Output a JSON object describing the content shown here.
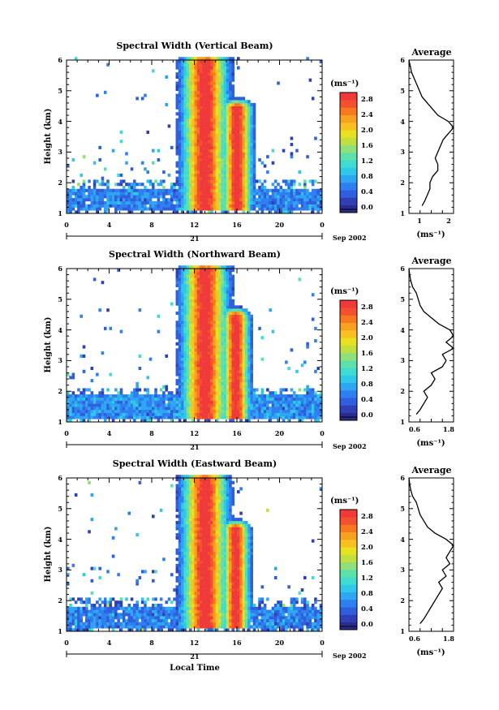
{
  "colormap": [
    "#2b2b8c",
    "#2f3fb5",
    "#2f5fdc",
    "#2f7ff0",
    "#2fa6f2",
    "#2fc8e8",
    "#3fdccf",
    "#5fe0a8",
    "#8fe07a",
    "#c0e040",
    "#e8e020",
    "#f8c020",
    "#f8a020",
    "#f87820",
    "#f45030",
    "#f03a3a"
  ],
  "panels": [
    {
      "title": "Spectral Width (Vertical Beam)",
      "ylabel": "Height (km)",
      "xticks": [
        "0",
        "4",
        "8",
        "12",
        "16",
        "20",
        "0"
      ],
      "date_day": "21",
      "date_month": "Sep 2002",
      "yticks": [
        "1",
        "2",
        "3",
        "4",
        "5",
        "6"
      ],
      "colorbar_unit": "(ms⁻¹)",
      "colorbar_ticks": [
        "0.0",
        "0.4",
        "0.8",
        "1.2",
        "1.6",
        "2.0",
        "2.4",
        "2.8"
      ],
      "avg_title": "Average",
      "avg_xticks": [
        "1",
        "2"
      ],
      "avg_xlabel": "(ms⁻¹)"
    },
    {
      "title": "Spectral Width (Northward Beam)",
      "ylabel": "Height (km)",
      "xticks": [
        "0",
        "4",
        "8",
        "12",
        "16",
        "20",
        "0"
      ],
      "date_day": "21",
      "date_month": "Sep 2002",
      "yticks": [
        "1",
        "2",
        "3",
        "4",
        "5",
        "6"
      ],
      "colorbar_unit": "(ms⁻¹)",
      "colorbar_ticks": [
        "0.0",
        "0.4",
        "0.8",
        "1.2",
        "1.6",
        "2.0",
        "2.4",
        "2.8"
      ],
      "avg_title": "Average",
      "avg_xticks": [
        "0.6",
        "1.8"
      ],
      "avg_xlabel": "(ms⁻¹)"
    },
    {
      "title": "Spectral Width (Eastward Beam)",
      "ylabel": "Height (km)",
      "xticks": [
        "0",
        "4",
        "8",
        "12",
        "16",
        "20",
        "0"
      ],
      "date_day": "21",
      "date_month": "Sep 2002",
      "yticks": [
        "1",
        "2",
        "3",
        "4",
        "5",
        "6"
      ],
      "colorbar_unit": "(ms⁻¹)",
      "colorbar_ticks": [
        "0.0",
        "0.4",
        "0.8",
        "1.2",
        "1.6",
        "2.0",
        "2.4",
        "2.8"
      ],
      "avg_title": "Average",
      "avg_xticks": [
        "0.6",
        "1.8"
      ],
      "avg_xlabel": "(ms⁻¹)",
      "xlabel": "Local Time"
    }
  ],
  "chart_data": [
    {
      "type": "heatmap",
      "title": "Spectral Width (Vertical Beam)",
      "xlabel": "",
      "ylabel": "Height (km)",
      "xlim": [
        0,
        24
      ],
      "ylim": [
        1,
        6
      ],
      "colorbar_range": [
        0.0,
        3.0
      ],
      "features": [
        {
          "region": "convective band",
          "time": [
            11.5,
            14.5
          ],
          "height": [
            1.1,
            6.0
          ],
          "value": 3.0
        },
        {
          "region": "convective band",
          "time": [
            15.0,
            17.0
          ],
          "height": [
            1.1,
            4.5
          ],
          "value": 3.0
        },
        {
          "region": "boundary layer",
          "time": [
            0,
            24
          ],
          "height": [
            1.1,
            1.8
          ],
          "value": 0.4
        }
      ]
    },
    {
      "type": "line",
      "title": "Average",
      "xlabel": "(ms⁻¹)",
      "ylabel": "",
      "xlim": [
        0.5,
        2.2
      ],
      "ylim": [
        1,
        6
      ],
      "series": [
        {
          "points": [
            [
              1.0,
              1.25
            ],
            [
              1.1,
              1.4
            ],
            [
              1.2,
              1.6
            ],
            [
              1.3,
              1.8
            ],
            [
              1.3,
              2.0
            ],
            [
              1.4,
              2.2
            ],
            [
              1.6,
              2.4
            ],
            [
              1.6,
              2.6
            ],
            [
              1.5,
              2.8
            ],
            [
              1.6,
              3.0
            ],
            [
              1.7,
              3.2
            ],
            [
              1.8,
              3.4
            ],
            [
              2.0,
              3.6
            ],
            [
              2.2,
              3.8
            ],
            [
              2.0,
              4.0
            ],
            [
              1.6,
              4.2
            ],
            [
              1.4,
              4.4
            ],
            [
              1.2,
              4.6
            ],
            [
              1.0,
              4.8
            ],
            [
              0.9,
              5.0
            ],
            [
              0.8,
              5.2
            ],
            [
              0.7,
              5.4
            ],
            [
              0.6,
              5.6
            ],
            [
              0.55,
              5.8
            ],
            [
              0.5,
              6.0
            ]
          ]
        }
      ]
    },
    {
      "type": "heatmap",
      "title": "Spectral Width (Northward Beam)",
      "xlabel": "",
      "ylabel": "Height (km)",
      "xlim": [
        0,
        24
      ],
      "ylim": [
        1,
        6
      ],
      "colorbar_range": [
        0.0,
        3.0
      ],
      "features": [
        {
          "region": "convective band",
          "time": [
            11.5,
            14.5
          ],
          "height": [
            1.1,
            6.0
          ],
          "value": 3.0
        },
        {
          "region": "convective band",
          "time": [
            15.0,
            16.8
          ],
          "height": [
            1.1,
            4.5
          ],
          "value": 3.0
        },
        {
          "region": "boundary layer",
          "time": [
            0,
            24
          ],
          "height": [
            1.1,
            1.9
          ],
          "value": 0.5
        }
      ]
    },
    {
      "type": "line",
      "title": "Average",
      "xlabel": "(ms⁻¹)",
      "ylabel": "",
      "xlim": [
        0.6,
        1.8
      ],
      "ylim": [
        1,
        6
      ],
      "series": [
        {
          "points": [
            [
              0.8,
              1.25
            ],
            [
              0.9,
              1.4
            ],
            [
              1.0,
              1.6
            ],
            [
              1.1,
              1.8
            ],
            [
              1.0,
              2.0
            ],
            [
              1.2,
              2.2
            ],
            [
              1.3,
              2.4
            ],
            [
              1.2,
              2.6
            ],
            [
              1.5,
              2.8
            ],
            [
              1.6,
              3.0
            ],
            [
              1.5,
              3.2
            ],
            [
              1.8,
              3.4
            ],
            [
              1.6,
              3.6
            ],
            [
              1.8,
              3.8
            ],
            [
              1.7,
              4.0
            ],
            [
              1.4,
              4.2
            ],
            [
              1.2,
              4.4
            ],
            [
              1.0,
              4.6
            ],
            [
              0.9,
              4.8
            ],
            [
              0.85,
              5.0
            ],
            [
              0.8,
              5.2
            ],
            [
              0.7,
              5.4
            ],
            [
              0.65,
              5.6
            ],
            [
              0.62,
              5.8
            ],
            [
              0.6,
              6.0
            ]
          ]
        }
      ]
    },
    {
      "type": "heatmap",
      "title": "Spectral Width (Eastward Beam)",
      "xlabel": "Local Time",
      "ylabel": "Height (km)",
      "xlim": [
        0,
        24
      ],
      "ylim": [
        1,
        6
      ],
      "colorbar_range": [
        0.0,
        3.0
      ],
      "features": [
        {
          "region": "convective band",
          "time": [
            11.5,
            14.5
          ],
          "height": [
            1.1,
            6.0
          ],
          "value": 3.0
        },
        {
          "region": "convective band",
          "time": [
            15.0,
            16.8
          ],
          "height": [
            1.1,
            4.4
          ],
          "value": 3.0
        },
        {
          "region": "boundary layer",
          "time": [
            0,
            24
          ],
          "height": [
            1.1,
            1.8
          ],
          "value": 0.4
        }
      ]
    },
    {
      "type": "line",
      "title": "Average",
      "xlabel": "(ms⁻¹)",
      "ylabel": "",
      "xlim": [
        0.6,
        1.8
      ],
      "ylim": [
        1,
        6
      ],
      "series": [
        {
          "points": [
            [
              0.9,
              1.25
            ],
            [
              1.0,
              1.4
            ],
            [
              1.1,
              1.6
            ],
            [
              1.2,
              1.8
            ],
            [
              1.3,
              2.0
            ],
            [
              1.4,
              2.2
            ],
            [
              1.5,
              2.4
            ],
            [
              1.4,
              2.6
            ],
            [
              1.6,
              2.8
            ],
            [
              1.5,
              3.0
            ],
            [
              1.7,
              3.2
            ],
            [
              1.6,
              3.4
            ],
            [
              1.7,
              3.6
            ],
            [
              1.8,
              3.8
            ],
            [
              1.6,
              4.0
            ],
            [
              1.3,
              4.2
            ],
            [
              1.1,
              4.4
            ],
            [
              1.0,
              4.6
            ],
            [
              0.9,
              4.8
            ],
            [
              0.85,
              5.0
            ],
            [
              0.8,
              5.2
            ],
            [
              0.7,
              5.4
            ],
            [
              0.65,
              5.6
            ],
            [
              0.62,
              5.8
            ],
            [
              0.6,
              6.0
            ]
          ]
        }
      ]
    }
  ]
}
